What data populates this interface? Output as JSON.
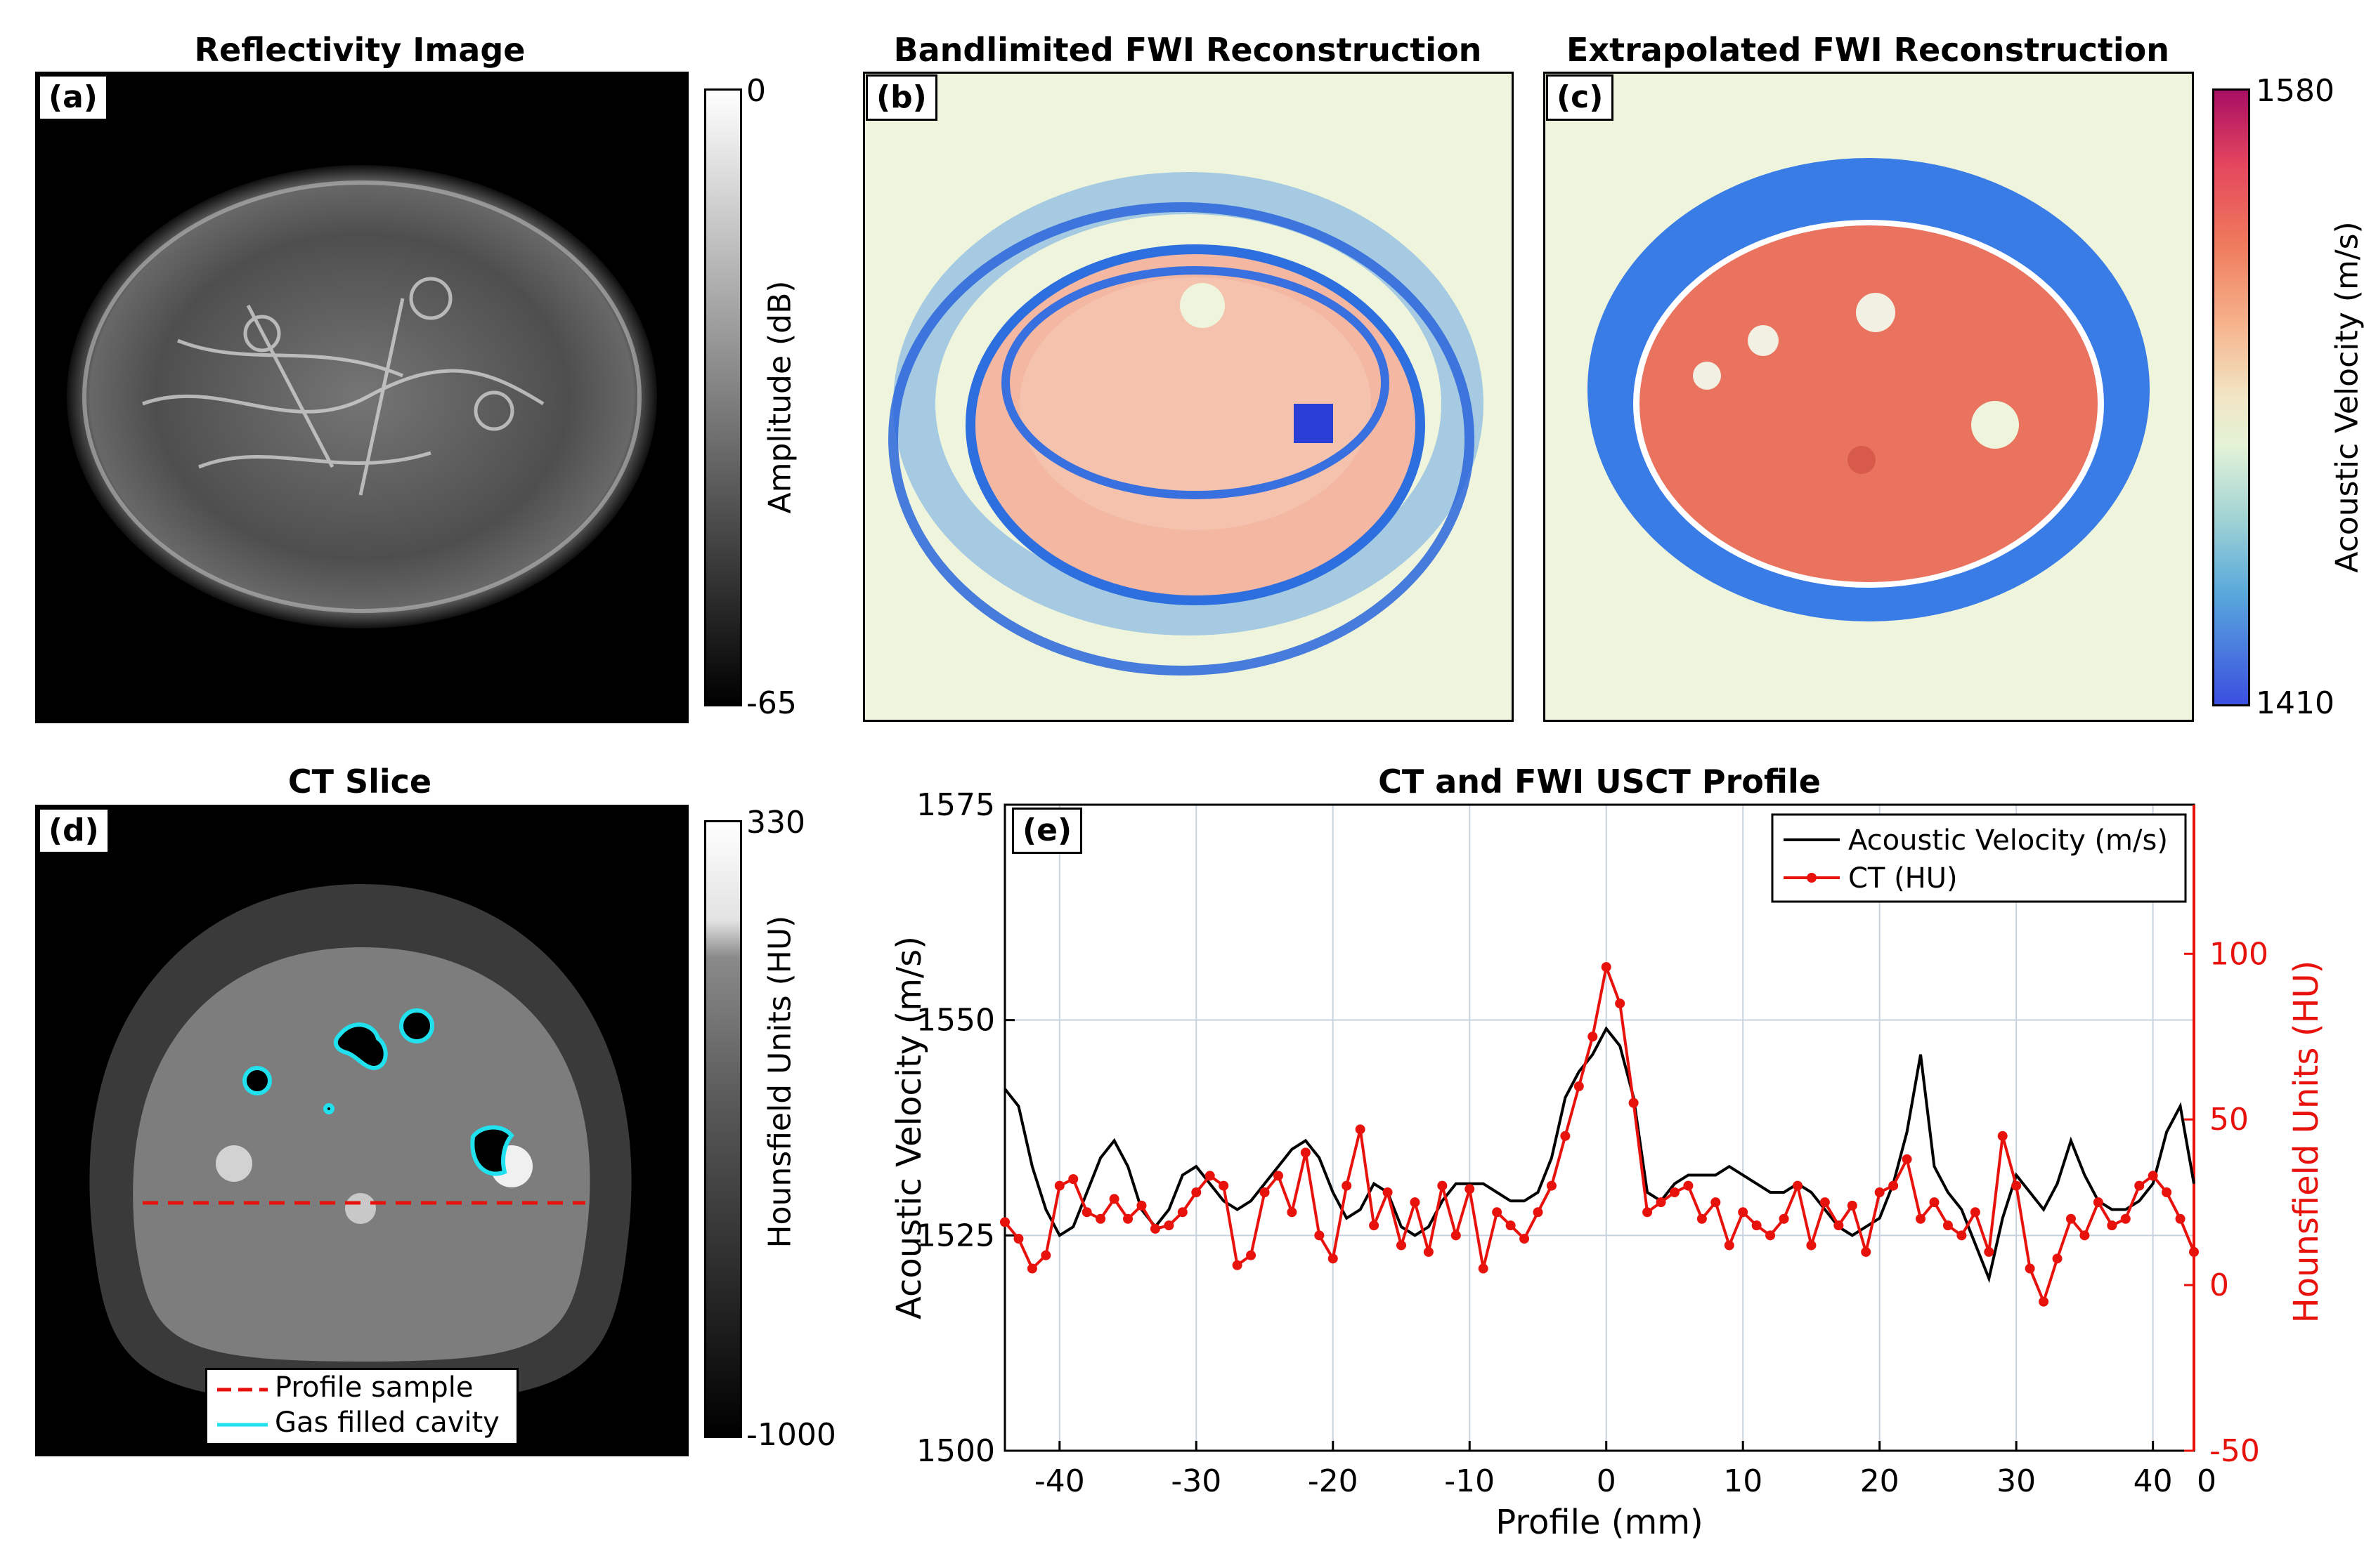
{
  "panels": {
    "a": {
      "label": "(a)",
      "title": "Reflectivity Image",
      "colorbar": {
        "max": "0",
        "min": "-65",
        "name": "Amplitude (dB)"
      }
    },
    "b": {
      "label": "(b)",
      "title": "Bandlimited FWI Reconstruction"
    },
    "c": {
      "label": "(c)",
      "title": "Extrapolated FWI Reconstruction",
      "colorbar": {
        "max": "1580",
        "min": "1410",
        "name": "Acoustic Velocity (m/s)"
      }
    },
    "d": {
      "label": "(d)",
      "title": "CT Slice",
      "colorbar": {
        "max": "330",
        "min": "-1000",
        "name": "Hounsfield Units (HU)"
      },
      "legend": [
        "Profile sample",
        "Gas filled cavity"
      ]
    },
    "e": {
      "label": "(e)",
      "title": "CT and FWI USCT Profile"
    }
  },
  "colors": {
    "velocity_line": "#000000",
    "ct_line": "#e8120c",
    "cavity": "#21e1ef",
    "cmap_low": "#3c4fe0",
    "cmap_mid": "#eef5dc",
    "cmap_high": "#a80e64"
  },
  "chart_data": {
    "type": "line",
    "title": "CT and FWI USCT Profile",
    "xlabel": "Profile (mm)",
    "ylabel": "Acoustic Velocity (m/s)",
    "ylabel_right": "Hounsfield Units (HU)",
    "xlim": [
      -44,
      43
    ],
    "ylim": [
      1500,
      1575
    ],
    "ylim_right": [
      -50,
      145
    ],
    "xticks": [
      "-40",
      "-30",
      "-20",
      "-10",
      "0",
      "10",
      "20",
      "30",
      "40"
    ],
    "xticks_extra": "0",
    "yticks": [
      "1500",
      "1525",
      "1550",
      "1575"
    ],
    "yticks_right": [
      "-50",
      "0",
      "50",
      "100"
    ],
    "grid": true,
    "legend": "top-right",
    "series": [
      {
        "name": "Acoustic Velocity (m/s)",
        "axis": "left",
        "x": [
          -44,
          -43,
          -42,
          -41,
          -40,
          -39,
          -38,
          -37,
          -36,
          -35,
          -34,
          -33,
          -32,
          -31,
          -30,
          -29,
          -28,
          -27,
          -26,
          -25,
          -24,
          -23,
          -22,
          -21,
          -20,
          -19,
          -18,
          -17,
          -16,
          -15,
          -14,
          -13,
          -12,
          -11,
          -10,
          -9,
          -8,
          -7,
          -6,
          -5,
          -4,
          -3,
          -2,
          -1,
          0,
          1,
          2,
          3,
          4,
          5,
          6,
          7,
          8,
          9,
          10,
          11,
          12,
          13,
          14,
          15,
          16,
          17,
          18,
          19,
          20,
          21,
          22,
          23,
          24,
          25,
          26,
          27,
          28,
          29,
          30,
          31,
          32,
          33,
          34,
          35,
          36,
          37,
          38,
          39,
          40,
          41,
          42,
          43
        ],
        "y": [
          1542,
          1540,
          1533,
          1528,
          1525,
          1526,
          1530,
          1534,
          1536,
          1533,
          1528,
          1526,
          1528,
          1532,
          1533,
          1531,
          1529,
          1528,
          1529,
          1531,
          1533,
          1535,
          1536,
          1534,
          1530,
          1527,
          1528,
          1531,
          1530,
          1526,
          1525,
          1526,
          1529,
          1531,
          1531,
          1531,
          1530,
          1529,
          1529,
          1530,
          1534,
          1541,
          1544,
          1546,
          1549,
          1547,
          1541,
          1530,
          1529,
          1531,
          1532,
          1532,
          1532,
          1533,
          1532,
          1531,
          1530,
          1530,
          1531,
          1530,
          1528,
          1526,
          1525,
          1526,
          1527,
          1531,
          1537,
          1546,
          1533,
          1530,
          1528,
          1524,
          1520,
          1527,
          1532,
          1530,
          1528,
          1531,
          1536,
          1532,
          1529,
          1528,
          1528,
          1529,
          1531,
          1537,
          1540,
          1531
        ]
      },
      {
        "name": "CT (HU)",
        "axis": "right",
        "x": [
          -44,
          -43,
          -42,
          -41,
          -40,
          -39,
          -38,
          -37,
          -36,
          -35,
          -34,
          -33,
          -32,
          -31,
          -30,
          -29,
          -28,
          -27,
          -26,
          -25,
          -24,
          -23,
          -22,
          -21,
          -20,
          -19,
          -18,
          -17,
          -16,
          -15,
          -14,
          -13,
          -12,
          -11,
          -10,
          -9,
          -8,
          -7,
          -6,
          -5,
          -4,
          -3,
          -2,
          -1,
          0,
          1,
          2,
          3,
          4,
          5,
          6,
          7,
          8,
          9,
          10,
          11,
          12,
          13,
          14,
          15,
          16,
          17,
          18,
          19,
          20,
          21,
          22,
          23,
          24,
          25,
          26,
          27,
          28,
          29,
          30,
          31,
          32,
          33,
          34,
          35,
          36,
          37,
          38,
          39,
          40,
          41,
          42,
          43
        ],
        "y": [
          19,
          14,
          5,
          9,
          30,
          32,
          22,
          20,
          26,
          20,
          24,
          17,
          18,
          22,
          28,
          33,
          30,
          6,
          9,
          28,
          33,
          22,
          40,
          15,
          8,
          30,
          47,
          18,
          28,
          12,
          25,
          10,
          30,
          15,
          29,
          5,
          22,
          18,
          14,
          22,
          30,
          45,
          60,
          75,
          96,
          85,
          55,
          22,
          25,
          28,
          30,
          20,
          25,
          12,
          22,
          18,
          15,
          20,
          30,
          12,
          25,
          18,
          24,
          10,
          28,
          30,
          38,
          20,
          25,
          18,
          15,
          22,
          10,
          45,
          30,
          5,
          -5,
          8,
          20,
          15,
          25,
          18,
          20,
          30,
          33,
          28,
          20,
          10
        ]
      }
    ]
  }
}
